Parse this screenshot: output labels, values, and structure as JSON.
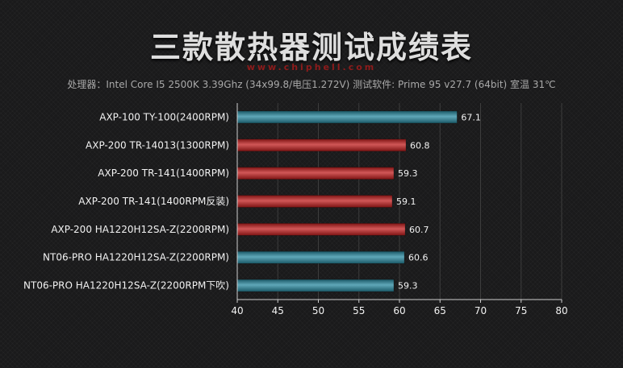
{
  "header": {
    "title": "三款散热器测试成绩表",
    "watermark": "www.chiphell.com",
    "subtitle": "处理器：Intel Core I5 2500K 3.39Ghz (34x99.8/电压1.272V)     测试软件: Prime 95 v27.7 (64bit)     室温 31℃"
  },
  "chart_data": {
    "type": "bar",
    "orientation": "horizontal",
    "title": "三款散热器测试成绩表",
    "xlim": [
      40,
      80
    ],
    "x_ticks": [
      40,
      45,
      50,
      55,
      60,
      65,
      70,
      75,
      80
    ],
    "grid": true,
    "categories": [
      "AXP-100 TY-100(2400RPM)",
      "AXP-200 TR-14013(1300RPM)",
      "AXP-200 TR-141(1400RPM)",
      "AXP-200 TR-141(1400RPM反装)",
      "AXP-200 HA1220H12SA-Z(2200RPM)",
      "NT06-PRO HA1220H12SA-Z(2200RPM)",
      "NT06-PRO HA1220H12SA-Z(2200RPM下吹)"
    ],
    "values": [
      67.1,
      60.8,
      59.3,
      59.1,
      60.7,
      60.6,
      59.3
    ],
    "bar_colors": [
      "#2a8aa0",
      "#c21f1f",
      "#c21f1f",
      "#c21f1f",
      "#c21f1f",
      "#2a8aa0",
      "#2a8aa0"
    ]
  }
}
